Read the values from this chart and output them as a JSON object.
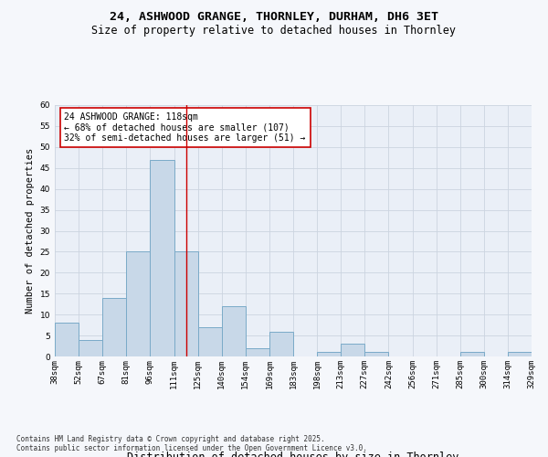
{
  "title_line1": "24, ASHWOOD GRANGE, THORNLEY, DURHAM, DH6 3ET",
  "title_line2": "Size of property relative to detached houses in Thornley",
  "xlabel": "Distribution of detached houses by size in Thornley",
  "ylabel": "Number of detached properties",
  "bar_values": [
    8,
    4,
    14,
    25,
    47,
    25,
    7,
    12,
    2,
    6,
    0,
    1,
    3,
    1,
    0,
    0,
    0,
    1,
    0,
    1
  ],
  "bin_labels": [
    "38sqm",
    "52sqm",
    "67sqm",
    "81sqm",
    "96sqm",
    "111sqm",
    "125sqm",
    "140sqm",
    "154sqm",
    "169sqm",
    "183sqm",
    "198sqm",
    "213sqm",
    "227sqm",
    "242sqm",
    "256sqm",
    "271sqm",
    "285sqm",
    "300sqm",
    "314sqm",
    "329sqm"
  ],
  "bar_color": "#c8d8e8",
  "bar_edge_color": "#7aaac8",
  "grid_color": "#ccd4e0",
  "bg_color": "#eaeff7",
  "fig_bg_color": "#f5f7fb",
  "vline_color": "#cc0000",
  "vline_pos": 5.5,
  "annotation_text": "24 ASHWOOD GRANGE: 118sqm\n← 68% of detached houses are smaller (107)\n32% of semi-detached houses are larger (51) →",
  "annotation_box_color": "#ffffff",
  "annotation_box_edge": "#cc0000",
  "annotation_fontsize": 7,
  "ylim": [
    0,
    60
  ],
  "yticks": [
    0,
    5,
    10,
    15,
    20,
    25,
    30,
    35,
    40,
    45,
    50,
    55,
    60
  ],
  "footer_text": "Contains HM Land Registry data © Crown copyright and database right 2025.\nContains public sector information licensed under the Open Government Licence v3.0.",
  "title_fontsize": 9.5,
  "subtitle_fontsize": 8.5,
  "xlabel_fontsize": 8.5,
  "ylabel_fontsize": 7.5,
  "tick_fontsize": 6.5,
  "footer_fontsize": 5.5
}
